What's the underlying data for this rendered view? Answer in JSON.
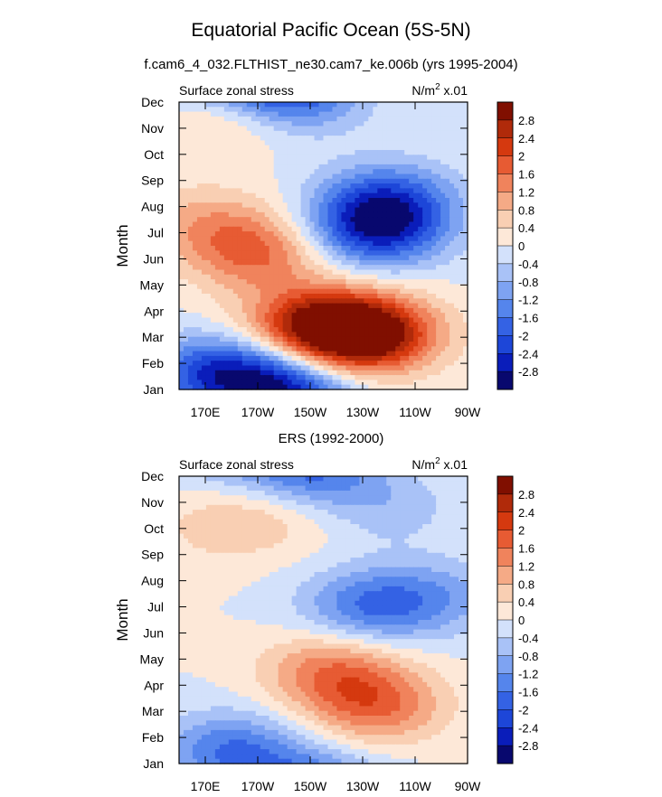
{
  "title": "Equatorial Pacific Ocean (5S-5N)",
  "chart_data": [
    {
      "type": "heatmap",
      "title": "f.cam6_4_032.FLTHIST_ne30.cam7_ke.006b (yrs 1995-2004)",
      "left_label": "Surface zonal stress",
      "right_label": "N/m",
      "right_label_sup": "2",
      "right_label_suffix": " x.01",
      "ylabel": "Month",
      "xlabel": "",
      "y_categories": [
        "Jan",
        "Feb",
        "Mar",
        "Apr",
        "May",
        "Jun",
        "Jul",
        "Aug",
        "Sep",
        "Oct",
        "Nov",
        "Dec"
      ],
      "x_tick_labels": [
        "170E",
        "170W",
        "150W",
        "130W",
        "110W",
        "90W"
      ],
      "x_tick_lon": [
        170,
        190,
        210,
        230,
        250,
        270
      ],
      "xlim": [
        160,
        270
      ],
      "features": [
        {
          "lon": 212,
          "month": 2.4,
          "value": 2.6
        },
        {
          "lon": 232,
          "month": 2.1,
          "value": 3.2
        },
        {
          "lon": 190,
          "month": 5.2,
          "value": 1.6
        },
        {
          "lon": 170,
          "month": 6.4,
          "value": 0.9
        },
        {
          "lon": 178,
          "month": 10.5,
          "value": 0.7
        },
        {
          "lon": 173,
          "month": 0.6,
          "value": -2.0
        },
        {
          "lon": 196,
          "month": 0.3,
          "value": -1.8
        },
        {
          "lon": 235,
          "month": 6.1,
          "value": -2.4
        },
        {
          "lon": 240,
          "month": 7.3,
          "value": -1.7
        },
        {
          "lon": 205,
          "month": 11.2,
          "value": -1.4
        }
      ],
      "colorbar_labels": [
        "2.8",
        "2.4",
        "2",
        "1.6",
        "1.2",
        "0.8",
        "0.4",
        "0",
        "-0.4",
        "-0.8",
        "-1.2",
        "-1.6",
        "-2",
        "-2.4",
        "-2.8"
      ]
    },
    {
      "type": "heatmap",
      "title": "ERS (1992-2000)",
      "left_label": "Surface zonal stress",
      "right_label": "N/m",
      "right_label_sup": "2",
      "right_label_suffix": " x.01",
      "ylabel": "Month",
      "xlabel": "",
      "y_categories": [
        "Jan",
        "Feb",
        "Mar",
        "Apr",
        "May",
        "Jun",
        "Jul",
        "Aug",
        "Sep",
        "Oct",
        "Nov",
        "Dec"
      ],
      "x_tick_labels": [
        "170E",
        "170W",
        "150W",
        "130W",
        "110W",
        "90W"
      ],
      "x_tick_lon": [
        170,
        190,
        210,
        230,
        250,
        270
      ],
      "xlim": [
        160,
        270
      ],
      "features": [
        {
          "lon": 218,
          "month": 3.6,
          "value": 1.4
        },
        {
          "lon": 235,
          "month": 2.2,
          "value": 1.6
        },
        {
          "lon": 200,
          "month": 9.7,
          "value": 0.6
        },
        {
          "lon": 175,
          "month": 9.0,
          "value": 0.5
        },
        {
          "lon": 180,
          "month": 0.5,
          "value": -1.6
        },
        {
          "lon": 232,
          "month": 6.0,
          "value": -1.5
        },
        {
          "lon": 210,
          "month": 11.1,
          "value": -1.7
        },
        {
          "lon": 258,
          "month": 6.4,
          "value": -0.9
        },
        {
          "lon": 240,
          "month": 9.8,
          "value": -0.6
        }
      ],
      "colorbar_labels": [
        "2.8",
        "2.4",
        "2",
        "1.6",
        "1.2",
        "0.8",
        "0.4",
        "0",
        "-0.4",
        "-0.8",
        "-1.2",
        "-1.6",
        "-2",
        "-2.4",
        "-2.8"
      ]
    }
  ],
  "colors": {
    "palette": [
      "#08086e",
      "#0a1dba",
      "#1d46d8",
      "#3462e4",
      "#5585ec",
      "#7ea3f2",
      "#a9c2f7",
      "#d3e1fb",
      "#fde8d8",
      "#f9cfb3",
      "#f5aa86",
      "#f0835c",
      "#e75b33",
      "#d5390f",
      "#b02a0a",
      "#800f00"
    ]
  }
}
